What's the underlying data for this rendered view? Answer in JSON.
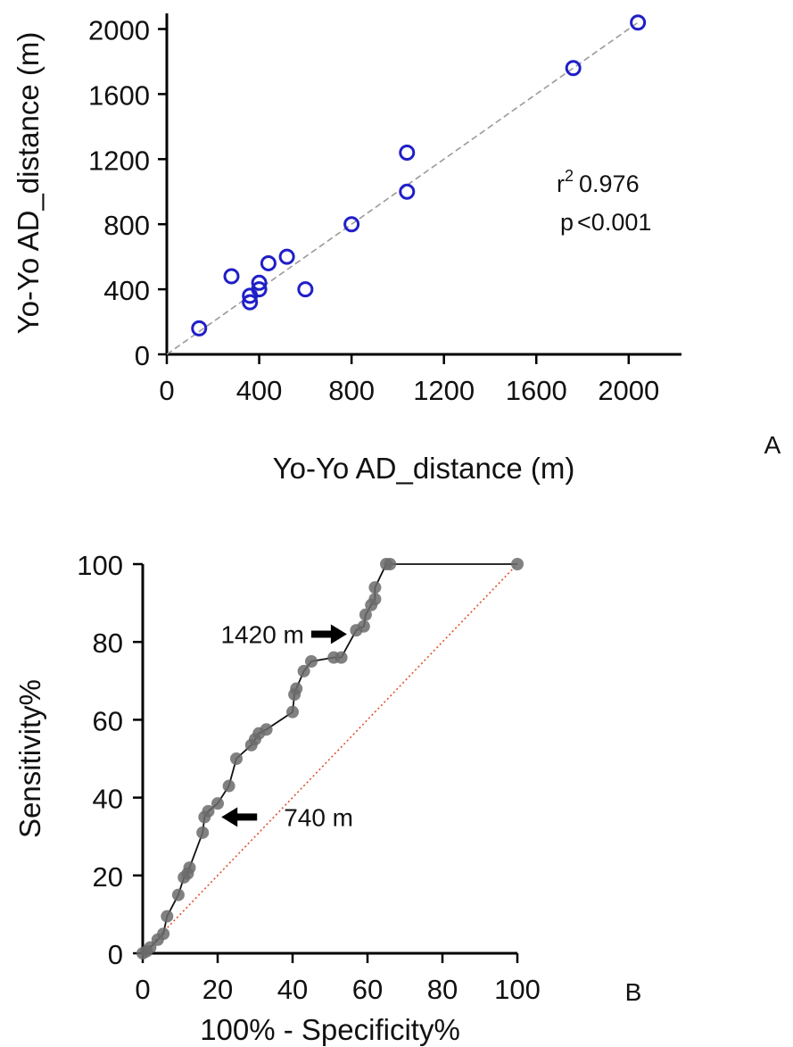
{
  "chart_data": [
    {
      "panel": "A",
      "type": "scatter",
      "xlabel": "Yo-Yo AD_distance (m)",
      "ylabel": "Yo-Yo AD_distance (m)",
      "xlim": [
        0,
        2200
      ],
      "ylim": [
        0,
        2100
      ],
      "xticks": [
        0,
        400,
        800,
        1200,
        1600,
        2000
      ],
      "yticks": [
        0,
        400,
        800,
        1200,
        1600,
        2000
      ],
      "grid": false,
      "points": [
        {
          "x": 140,
          "y": 160
        },
        {
          "x": 280,
          "y": 480
        },
        {
          "x": 360,
          "y": 320
        },
        {
          "x": 360,
          "y": 360
        },
        {
          "x": 400,
          "y": 400
        },
        {
          "x": 400,
          "y": 440
        },
        {
          "x": 440,
          "y": 560
        },
        {
          "x": 520,
          "y": 600
        },
        {
          "x": 600,
          "y": 400
        },
        {
          "x": 800,
          "y": 800
        },
        {
          "x": 1040,
          "y": 1000
        },
        {
          "x": 1040,
          "y": 1240
        },
        {
          "x": 1760,
          "y": 1760
        },
        {
          "x": 2040,
          "y": 2040
        }
      ],
      "identity_line": {
        "from": [
          0,
          0
        ],
        "to": [
          2040,
          2040
        ]
      },
      "stats": {
        "r2_symbol": "r",
        "r2_exp": "2",
        "r2_value": "0.976",
        "p_label": "p",
        "p_text": "<0.001"
      },
      "marker_color": "#1f1fc8",
      "line_color": "#9a9a9a",
      "panel_label": "A"
    },
    {
      "panel": "B",
      "type": "line",
      "xlabel": "100% - Specificity%",
      "ylabel": "Sensitivity%",
      "xlim": [
        0,
        100
      ],
      "ylim": [
        0,
        100
      ],
      "xticks": [
        0,
        20,
        40,
        60,
        80,
        100
      ],
      "yticks": [
        0,
        20,
        40,
        60,
        80,
        100
      ],
      "grid": false,
      "roc_points": [
        {
          "x": 0,
          "y": 0
        },
        {
          "x": 1,
          "y": 0.5
        },
        {
          "x": 2,
          "y": 1.5
        },
        {
          "x": 4,
          "y": 3.5
        },
        {
          "x": 5.5,
          "y": 5
        },
        {
          "x": 6.5,
          "y": 9.5
        },
        {
          "x": 9.5,
          "y": 15
        },
        {
          "x": 11,
          "y": 19.5
        },
        {
          "x": 12,
          "y": 20.5
        },
        {
          "x": 12.5,
          "y": 22
        },
        {
          "x": 16,
          "y": 31
        },
        {
          "x": 16.5,
          "y": 35
        },
        {
          "x": 17.5,
          "y": 36.5
        },
        {
          "x": 20,
          "y": 38.5
        },
        {
          "x": 23,
          "y": 43
        },
        {
          "x": 25,
          "y": 50
        },
        {
          "x": 29,
          "y": 53.5
        },
        {
          "x": 30,
          "y": 55
        },
        {
          "x": 31,
          "y": 56.5
        },
        {
          "x": 33,
          "y": 57.5
        },
        {
          "x": 40,
          "y": 62
        },
        {
          "x": 40.5,
          "y": 66.5
        },
        {
          "x": 41,
          "y": 68
        },
        {
          "x": 43,
          "y": 72.5
        },
        {
          "x": 45,
          "y": 75
        },
        {
          "x": 51,
          "y": 76
        },
        {
          "x": 53,
          "y": 76
        },
        {
          "x": 57,
          "y": 83
        },
        {
          "x": 59,
          "y": 84
        },
        {
          "x": 59.5,
          "y": 87
        },
        {
          "x": 61,
          "y": 89.5
        },
        {
          "x": 62,
          "y": 91
        },
        {
          "x": 62,
          "y": 94
        },
        {
          "x": 65,
          "y": 100
        },
        {
          "x": 66,
          "y": 100
        },
        {
          "x": 100,
          "y": 100
        }
      ],
      "reference_line": {
        "from": [
          0,
          0
        ],
        "to": [
          100,
          100
        ]
      },
      "annotations": [
        {
          "text": "1420 m",
          "arrow_to": [
            54.5,
            82
          ],
          "arrow_dir": "right"
        },
        {
          "text": "740 m",
          "arrow_to": [
            21,
            35
          ],
          "arrow_dir": "left"
        }
      ],
      "curve_color": "#111111",
      "marker_color": "#6b6b6b",
      "reference_color": "#e0502a",
      "panel_label": "B"
    }
  ]
}
